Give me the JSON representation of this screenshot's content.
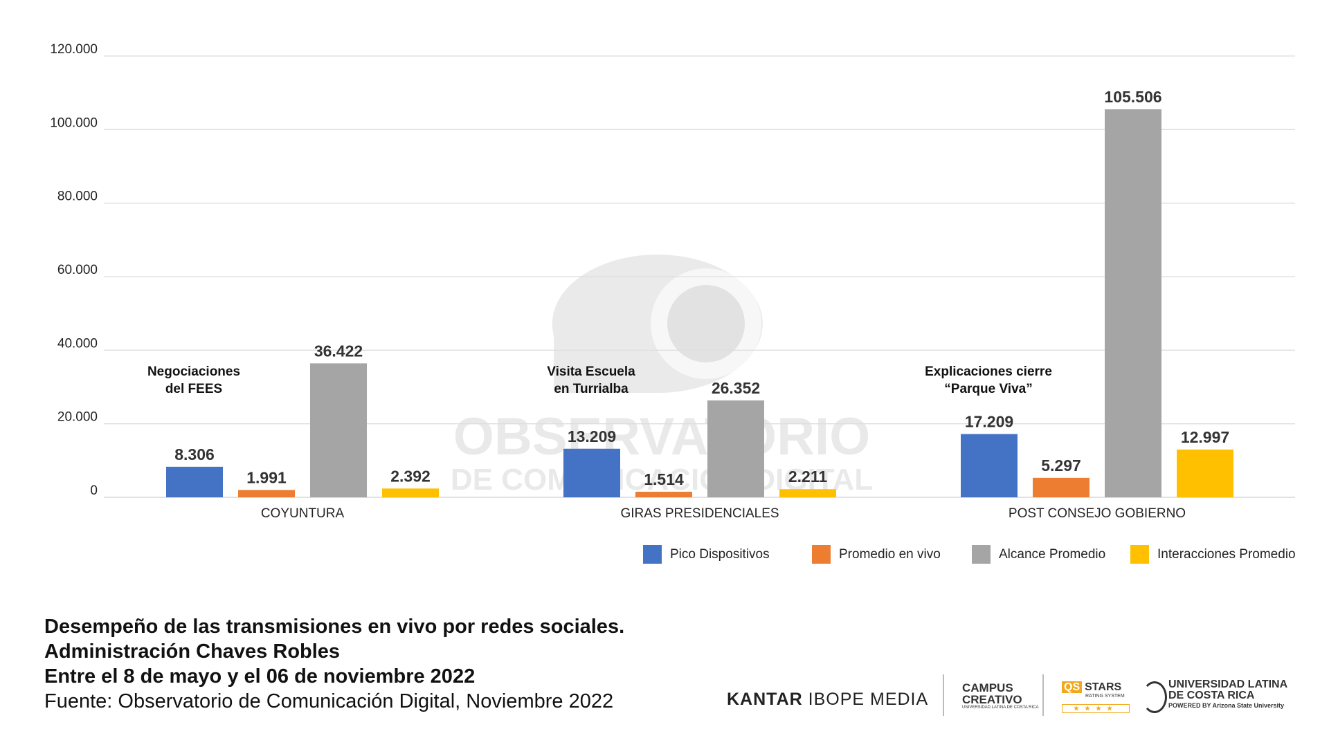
{
  "chart_data": {
    "type": "bar",
    "categories": [
      "COYUNTURA",
      "GIRAS PRESIDENCIALES",
      "POST CONSEJO GOBIERNO"
    ],
    "annotations": [
      [
        "Negociaciones",
        "del FEES"
      ],
      [
        "Visita Escuela",
        "en Turrialba"
      ],
      [
        "Explicaciones cierre",
        "“Parque Viva”"
      ]
    ],
    "series": [
      {
        "name": "Pico Dispositivos",
        "color": "#4472c4",
        "values": [
          8306,
          13209,
          17209
        ],
        "labels": [
          "8.306",
          "13.209",
          "17.209"
        ]
      },
      {
        "name": "Promedio en vivo",
        "color": "#ed7d31",
        "values": [
          1991,
          1514,
          5297
        ],
        "labels": [
          "1.991",
          "1.514",
          "5.297"
        ]
      },
      {
        "name": "Alcance Promedio",
        "color": "#a5a5a5",
        "values": [
          36422,
          26352,
          105506
        ],
        "labels": [
          "36.422",
          "26.352",
          "105.506"
        ]
      },
      {
        "name": "Interacciones Promedio",
        "color": "#ffc000",
        "values": [
          2392,
          2211,
          12997
        ],
        "labels": [
          "2.392",
          "2.211",
          "12.997"
        ]
      }
    ],
    "ylim": [
      0,
      120000
    ],
    "yticks": [
      0,
      20000,
      40000,
      60000,
      80000,
      100000,
      120000
    ],
    "ytick_labels": [
      "0",
      "20.000",
      "40.000",
      "60.000",
      "80.000",
      "100.000",
      "120.000"
    ],
    "grid": true,
    "legend_position": "bottom-right"
  },
  "watermark": {
    "line1": "OBSERVATORIO",
    "line2": "DE COMUNICACIÓN DIGITAL"
  },
  "caption": {
    "line1": "Desempeño de las transmisiones en vivo por redes sociales.",
    "line2": "Administración Chaves Robles",
    "line3": "Entre el 8 de mayo y el 06 de noviembre 2022",
    "source": "Fuente: Observatorio de Comunicación Digital, Noviembre 2022"
  },
  "logos": {
    "kantar_a": "KANTAR",
    "kantar_b": "IBOPE MEDIA",
    "campus_1": "CAMPUS",
    "campus_2": "CREATIVO",
    "campus_3": "UNIVERSIDAD LATINA DE COSTA RICA",
    "qs_1": "QS",
    "qs_2": "STARS",
    "qs_3": "RATING SYSTEM",
    "qs_stars": "★★★★",
    "ulat_1": "UNIVERSIDAD LATINA",
    "ulat_2": "DE COSTA RICA",
    "ulat_3": "POWERED BY Arizona State University"
  }
}
